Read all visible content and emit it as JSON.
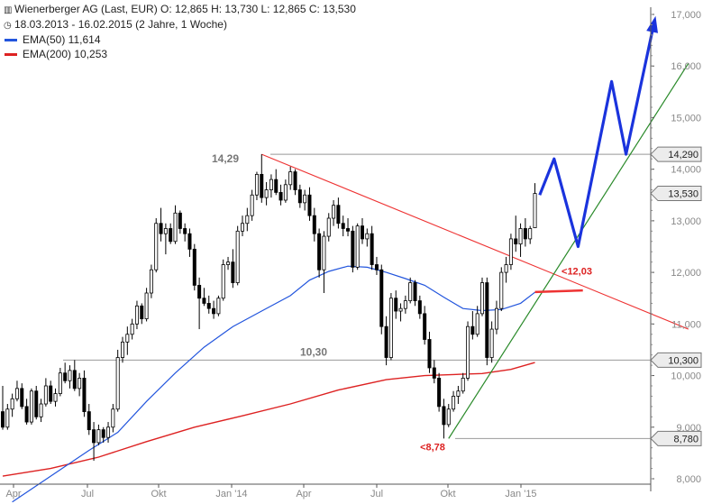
{
  "header": {
    "title_line": "Wienerberger AG (Last, EUR)  O: 12,865  H: 13,730  L: 12,865  C: 13,530",
    "range_line": "18.03.2013 - 16.02.2015 (2 Jahre, 1 Woche)",
    "ema50_label": "EMA(50)  11,614",
    "ema200_label": "EMA(200)  10,253",
    "icon_title": "candlestick-icon",
    "icon_range": "clock-icon"
  },
  "colors": {
    "up": "#ffffff",
    "down": "#000000",
    "ema50": "#2255dd",
    "ema200": "#dd2222",
    "support": "#2a8a2a",
    "resistance": "#ee3333",
    "projection": "#1a33dd",
    "level": "#999999"
  },
  "chart_data": {
    "type": "candlestick",
    "title": "Wienerberger AG (Last, EUR)",
    "period": "18.03.2013 - 16.02.2015 (2 Jahre, 1 Woche)",
    "x_ticks": [
      "Apr",
      "Jul",
      "Okt",
      "Jan '14",
      "Apr",
      "Jul",
      "Okt",
      "Jan '15"
    ],
    "y_ticks": [
      "8,000",
      "9,000",
      "10,000",
      "11,000",
      "12,000",
      "13,000",
      "14,000",
      "15,000",
      "16,000",
      "17,000"
    ],
    "ylim": [
      8.0,
      17.0
    ],
    "candles": [
      {
        "o": 9.3,
        "h": 9.8,
        "l": 8.95,
        "c": 9.0
      },
      {
        "o": 9.0,
        "h": 9.45,
        "l": 8.95,
        "c": 9.35
      },
      {
        "o": 9.35,
        "h": 9.65,
        "l": 9.2,
        "c": 9.55
      },
      {
        "o": 9.55,
        "h": 9.9,
        "l": 9.5,
        "c": 9.75
      },
      {
        "o": 9.75,
        "h": 9.85,
        "l": 9.35,
        "c": 9.4
      },
      {
        "o": 9.4,
        "h": 9.55,
        "l": 9.05,
        "c": 9.1
      },
      {
        "o": 9.1,
        "h": 9.75,
        "l": 9.05,
        "c": 9.7
      },
      {
        "o": 9.7,
        "h": 9.8,
        "l": 9.15,
        "c": 9.2
      },
      {
        "o": 9.2,
        "h": 9.55,
        "l": 9.1,
        "c": 9.45
      },
      {
        "o": 9.45,
        "h": 9.95,
        "l": 9.4,
        "c": 9.8
      },
      {
        "o": 9.8,
        "h": 9.9,
        "l": 9.45,
        "c": 9.5
      },
      {
        "o": 9.5,
        "h": 9.75,
        "l": 9.4,
        "c": 9.65
      },
      {
        "o": 9.65,
        "h": 10.15,
        "l": 9.6,
        "c": 10.05
      },
      {
        "o": 10.05,
        "h": 10.25,
        "l": 9.85,
        "c": 9.9
      },
      {
        "o": 9.9,
        "h": 10.2,
        "l": 9.75,
        "c": 10.1
      },
      {
        "o": 10.1,
        "h": 10.3,
        "l": 9.7,
        "c": 9.75
      },
      {
        "o": 9.75,
        "h": 10.05,
        "l": 9.6,
        "c": 9.95
      },
      {
        "o": 9.95,
        "h": 10.1,
        "l": 9.2,
        "c": 9.3
      },
      {
        "o": 9.3,
        "h": 9.45,
        "l": 8.85,
        "c": 8.95
      },
      {
        "o": 8.95,
        "h": 9.1,
        "l": 8.35,
        "c": 8.7
      },
      {
        "o": 8.7,
        "h": 9.05,
        "l": 8.65,
        "c": 8.95
      },
      {
        "o": 8.95,
        "h": 9.0,
        "l": 8.7,
        "c": 8.8
      },
      {
        "o": 8.8,
        "h": 9.1,
        "l": 8.7,
        "c": 9.0
      },
      {
        "o": 9.0,
        "h": 9.45,
        "l": 8.9,
        "c": 9.35
      },
      {
        "o": 9.35,
        "h": 10.5,
        "l": 9.3,
        "c": 10.35
      },
      {
        "o": 10.35,
        "h": 10.75,
        "l": 10.25,
        "c": 10.65
      },
      {
        "o": 10.65,
        "h": 10.95,
        "l": 10.4,
        "c": 10.8
      },
      {
        "o": 10.8,
        "h": 11.1,
        "l": 10.7,
        "c": 11.0
      },
      {
        "o": 11.0,
        "h": 11.45,
        "l": 10.9,
        "c": 11.35
      },
      {
        "o": 11.35,
        "h": 11.4,
        "l": 11.0,
        "c": 11.1
      },
      {
        "o": 11.1,
        "h": 11.7,
        "l": 11.05,
        "c": 11.6
      },
      {
        "o": 11.6,
        "h": 12.15,
        "l": 11.5,
        "c": 12.05
      },
      {
        "o": 12.05,
        "h": 13.05,
        "l": 12.0,
        "c": 12.95
      },
      {
        "o": 12.95,
        "h": 13.25,
        "l": 12.6,
        "c": 12.75
      },
      {
        "o": 12.75,
        "h": 12.95,
        "l": 12.35,
        "c": 12.85
      },
      {
        "o": 12.85,
        "h": 12.95,
        "l": 12.55,
        "c": 12.6
      },
      {
        "o": 12.6,
        "h": 13.3,
        "l": 12.55,
        "c": 13.15
      },
      {
        "o": 13.15,
        "h": 13.2,
        "l": 12.75,
        "c": 12.85
      },
      {
        "o": 12.85,
        "h": 12.95,
        "l": 12.6,
        "c": 12.75
      },
      {
        "o": 12.75,
        "h": 12.85,
        "l": 12.3,
        "c": 12.45
      },
      {
        "o": 12.45,
        "h": 12.55,
        "l": 11.65,
        "c": 11.75
      },
      {
        "o": 11.75,
        "h": 11.9,
        "l": 10.9,
        "c": 11.5
      },
      {
        "o": 11.5,
        "h": 11.7,
        "l": 11.35,
        "c": 11.4
      },
      {
        "o": 11.4,
        "h": 11.55,
        "l": 11.2,
        "c": 11.3
      },
      {
        "o": 11.3,
        "h": 11.45,
        "l": 11.1,
        "c": 11.2
      },
      {
        "o": 11.2,
        "h": 11.55,
        "l": 11.15,
        "c": 11.5
      },
      {
        "o": 11.5,
        "h": 12.25,
        "l": 11.45,
        "c": 12.15
      },
      {
        "o": 12.15,
        "h": 12.3,
        "l": 12.05,
        "c": 12.2
      },
      {
        "o": 12.2,
        "h": 12.45,
        "l": 11.7,
        "c": 11.8
      },
      {
        "o": 11.8,
        "h": 12.9,
        "l": 11.75,
        "c": 12.8
      },
      {
        "o": 12.8,
        "h": 13.1,
        "l": 12.7,
        "c": 12.95
      },
      {
        "o": 12.95,
        "h": 13.25,
        "l": 12.8,
        "c": 13.1
      },
      {
        "o": 13.1,
        "h": 13.6,
        "l": 13.0,
        "c": 13.5
      },
      {
        "o": 13.5,
        "h": 13.95,
        "l": 13.4,
        "c": 13.9
      },
      {
        "o": 13.9,
        "h": 14.29,
        "l": 13.35,
        "c": 13.45
      },
      {
        "o": 13.45,
        "h": 13.75,
        "l": 13.3,
        "c": 13.6
      },
      {
        "o": 13.6,
        "h": 13.9,
        "l": 13.45,
        "c": 13.8
      },
      {
        "o": 13.8,
        "h": 14.0,
        "l": 13.5,
        "c": 13.55
      },
      {
        "o": 13.55,
        "h": 13.7,
        "l": 13.3,
        "c": 13.4
      },
      {
        "o": 13.4,
        "h": 13.8,
        "l": 13.35,
        "c": 13.7
      },
      {
        "o": 13.7,
        "h": 14.05,
        "l": 13.6,
        "c": 13.95
      },
      {
        "o": 13.95,
        "h": 14.0,
        "l": 13.5,
        "c": 13.6
      },
      {
        "o": 13.6,
        "h": 13.7,
        "l": 13.25,
        "c": 13.35
      },
      {
        "o": 13.35,
        "h": 13.6,
        "l": 13.2,
        "c": 13.5
      },
      {
        "o": 13.5,
        "h": 13.65,
        "l": 13.0,
        "c": 13.1
      },
      {
        "o": 13.1,
        "h": 13.25,
        "l": 12.6,
        "c": 12.75
      },
      {
        "o": 12.75,
        "h": 12.85,
        "l": 11.9,
        "c": 12.05
      },
      {
        "o": 12.05,
        "h": 12.8,
        "l": 11.6,
        "c": 12.7
      },
      {
        "o": 12.7,
        "h": 13.15,
        "l": 12.6,
        "c": 13.05
      },
      {
        "o": 13.05,
        "h": 13.4,
        "l": 12.9,
        "c": 13.3
      },
      {
        "o": 13.3,
        "h": 13.45,
        "l": 12.85,
        "c": 12.95
      },
      {
        "o": 12.95,
        "h": 13.1,
        "l": 12.7,
        "c": 12.85
      },
      {
        "o": 12.85,
        "h": 13.05,
        "l": 12.7,
        "c": 12.8
      },
      {
        "o": 12.8,
        "h": 12.9,
        "l": 12.0,
        "c": 12.1
      },
      {
        "o": 12.1,
        "h": 12.95,
        "l": 12.05,
        "c": 12.9
      },
      {
        "o": 12.9,
        "h": 13.05,
        "l": 12.55,
        "c": 12.65
      },
      {
        "o": 12.65,
        "h": 12.85,
        "l": 12.5,
        "c": 12.75
      },
      {
        "o": 12.75,
        "h": 12.9,
        "l": 12.05,
        "c": 12.15
      },
      {
        "o": 12.15,
        "h": 12.3,
        "l": 11.95,
        "c": 12.05
      },
      {
        "o": 12.05,
        "h": 12.15,
        "l": 10.8,
        "c": 10.95
      },
      {
        "o": 10.95,
        "h": 11.15,
        "l": 10.2,
        "c": 10.35
      },
      {
        "o": 10.35,
        "h": 11.6,
        "l": 10.3,
        "c": 11.5
      },
      {
        "o": 11.5,
        "h": 11.65,
        "l": 11.1,
        "c": 11.25
      },
      {
        "o": 11.25,
        "h": 11.4,
        "l": 11.05,
        "c": 11.3
      },
      {
        "o": 11.3,
        "h": 11.55,
        "l": 11.2,
        "c": 11.45
      },
      {
        "o": 11.45,
        "h": 11.9,
        "l": 11.4,
        "c": 11.8
      },
      {
        "o": 11.8,
        "h": 11.85,
        "l": 11.35,
        "c": 11.45
      },
      {
        "o": 11.45,
        "h": 11.55,
        "l": 11.1,
        "c": 11.2
      },
      {
        "o": 11.2,
        "h": 11.35,
        "l": 10.6,
        "c": 10.7
      },
      {
        "o": 10.7,
        "h": 10.85,
        "l": 10.05,
        "c": 10.15
      },
      {
        "o": 10.15,
        "h": 10.3,
        "l": 9.85,
        "c": 9.95
      },
      {
        "o": 9.95,
        "h": 10.05,
        "l": 9.3,
        "c": 9.4
      },
      {
        "o": 9.4,
        "h": 9.55,
        "l": 8.78,
        "c": 9.05
      },
      {
        "o": 9.05,
        "h": 9.45,
        "l": 9.0,
        "c": 9.35
      },
      {
        "o": 9.35,
        "h": 9.7,
        "l": 9.3,
        "c": 9.6
      },
      {
        "o": 9.6,
        "h": 9.8,
        "l": 9.45,
        "c": 9.7
      },
      {
        "o": 9.7,
        "h": 10.05,
        "l": 9.65,
        "c": 9.95
      },
      {
        "o": 9.95,
        "h": 11.05,
        "l": 9.9,
        "c": 10.95
      },
      {
        "o": 10.95,
        "h": 11.25,
        "l": 10.7,
        "c": 10.8
      },
      {
        "o": 10.8,
        "h": 11.35,
        "l": 10.75,
        "c": 11.2
      },
      {
        "o": 11.2,
        "h": 11.9,
        "l": 11.15,
        "c": 11.8
      },
      {
        "o": 11.8,
        "h": 11.9,
        "l": 10.2,
        "c": 10.35
      },
      {
        "o": 10.35,
        "h": 11.05,
        "l": 10.25,
        "c": 10.9
      },
      {
        "o": 10.9,
        "h": 11.45,
        "l": 10.8,
        "c": 11.3
      },
      {
        "o": 11.3,
        "h": 12.1,
        "l": 11.25,
        "c": 12.0
      },
      {
        "o": 12.0,
        "h": 12.3,
        "l": 11.8,
        "c": 12.15
      },
      {
        "o": 12.15,
        "h": 12.75,
        "l": 12.05,
        "c": 12.65
      },
      {
        "o": 12.65,
        "h": 13.1,
        "l": 12.4,
        "c": 12.55
      },
      {
        "o": 12.55,
        "h": 12.95,
        "l": 12.3,
        "c": 12.85
      },
      {
        "o": 12.85,
        "h": 13.05,
        "l": 12.5,
        "c": 12.65
      },
      {
        "o": 12.65,
        "h": 12.9,
        "l": 12.55,
        "c": 12.85
      },
      {
        "o": 12.865,
        "h": 13.73,
        "l": 12.865,
        "c": 13.53
      }
    ],
    "ema50": [
      {
        "i": 2,
        "v": 7.55
      },
      {
        "i": 10,
        "v": 8.05
      },
      {
        "i": 18,
        "v": 8.55
      },
      {
        "i": 24,
        "v": 8.9
      },
      {
        "i": 30,
        "v": 9.5
      },
      {
        "i": 36,
        "v": 10.05
      },
      {
        "i": 42,
        "v": 10.55
      },
      {
        "i": 48,
        "v": 10.95
      },
      {
        "i": 54,
        "v": 11.25
      },
      {
        "i": 60,
        "v": 11.55
      },
      {
        "i": 64,
        "v": 11.85
      },
      {
        "i": 68,
        "v": 12.02
      },
      {
        "i": 72,
        "v": 12.12
      },
      {
        "i": 76,
        "v": 12.1
      },
      {
        "i": 80,
        "v": 12.0
      },
      {
        "i": 84,
        "v": 11.88
      },
      {
        "i": 88,
        "v": 11.75
      },
      {
        "i": 92,
        "v": 11.52
      },
      {
        "i": 96,
        "v": 11.3
      },
      {
        "i": 100,
        "v": 11.26
      },
      {
        "i": 104,
        "v": 11.28
      },
      {
        "i": 108,
        "v": 11.4
      },
      {
        "i": 111,
        "v": 11.614
      }
    ],
    "ema200": [
      {
        "i": 0,
        "v": 8.05
      },
      {
        "i": 10,
        "v": 8.2
      },
      {
        "i": 20,
        "v": 8.42
      },
      {
        "i": 30,
        "v": 8.72
      },
      {
        "i": 40,
        "v": 9.0
      },
      {
        "i": 50,
        "v": 9.22
      },
      {
        "i": 60,
        "v": 9.45
      },
      {
        "i": 70,
        "v": 9.72
      },
      {
        "i": 80,
        "v": 9.92
      },
      {
        "i": 88,
        "v": 10.0
      },
      {
        "i": 94,
        "v": 10.02
      },
      {
        "i": 100,
        "v": 10.04
      },
      {
        "i": 106,
        "v": 10.12
      },
      {
        "i": 111,
        "v": 10.253
      }
    ],
    "levels": [
      {
        "value": 14.29,
        "label": "14,29",
        "axis_label": "14,290"
      },
      {
        "value": 10.3,
        "label": "10,30",
        "axis_label": "10,300"
      },
      {
        "value": 8.78,
        "label": "<8,78",
        "axis_label": "8,780"
      }
    ],
    "last_price": {
      "value": 13.53,
      "axis_label": "13,530"
    },
    "annotations": [
      {
        "label": "<12,03",
        "value": 12.03
      }
    ],
    "resistance_line": [
      {
        "i": 54,
        "v": 14.29
      },
      {
        "i": 143,
        "v": 10.9
      }
    ],
    "support_line": [
      {
        "i": 93,
        "v": 8.78
      },
      {
        "i": 143,
        "v": 16.05
      }
    ],
    "projection": [
      {
        "i": 112,
        "v": 13.5
      },
      {
        "i": 115,
        "v": 14.2
      },
      {
        "i": 120,
        "v": 12.5
      },
      {
        "i": 127,
        "v": 15.7
      },
      {
        "i": 130,
        "v": 14.29
      },
      {
        "i": 136,
        "v": 16.9
      }
    ],
    "short_line": {
      "i1": 111,
      "i2": 121,
      "v1": 11.62,
      "v2": 11.65
    },
    "grid": false,
    "legend_position": "top-left"
  }
}
